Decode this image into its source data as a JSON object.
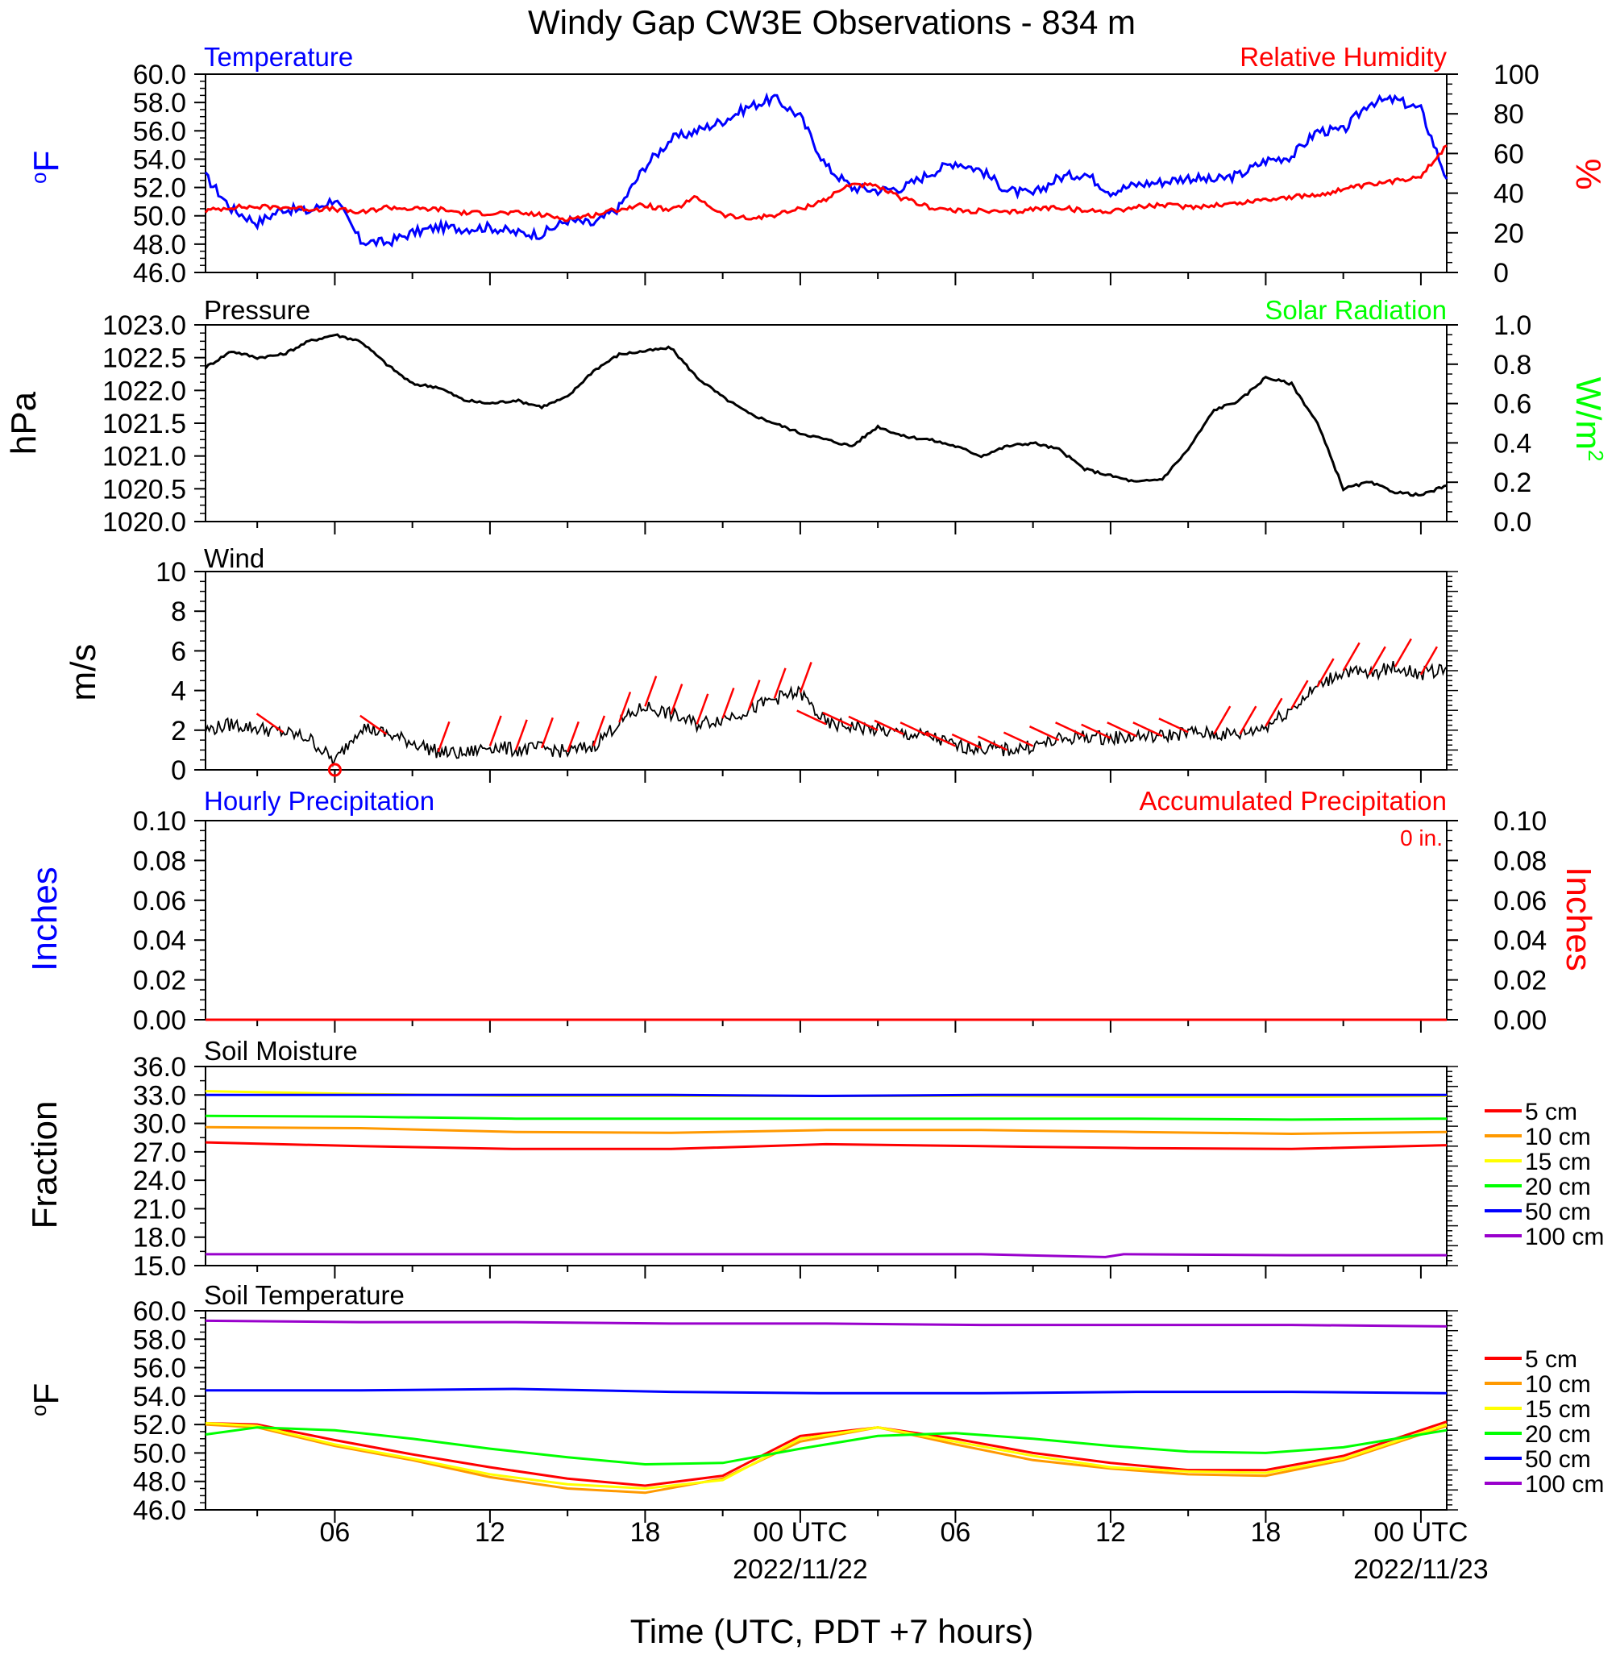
{
  "title": "Windy Gap CW3E Observations - 834 m",
  "x_axis": {
    "label": "Time (UTC, PDT +7 hours)",
    "ticks": [
      {
        "hour": 6,
        "label": "06",
        "date": ""
      },
      {
        "hour": 12,
        "label": "12",
        "date": ""
      },
      {
        "hour": 18,
        "label": "18",
        "date": ""
      },
      {
        "hour": 24,
        "label": "00 UTC",
        "date": "2022/11/22"
      },
      {
        "hour": 30,
        "label": "06",
        "date": ""
      },
      {
        "hour": 36,
        "label": "12",
        "date": ""
      },
      {
        "hour": 42,
        "label": "18",
        "date": ""
      },
      {
        "hour": 48,
        "label": "00 UTC",
        "date": "2022/11/23"
      }
    ],
    "range_hours": [
      1,
      49
    ]
  },
  "panels": {
    "temperature": {
      "left_title": "Temperature",
      "right_title": "Relative Humidity",
      "left_unit": "oF",
      "right_unit": "%",
      "left_ticks": [
        "46.0",
        "48.0",
        "50.0",
        "52.0",
        "54.0",
        "56.0",
        "58.0",
        "60.0"
      ],
      "right_ticks": [
        "0",
        "20",
        "40",
        "60",
        "80",
        "100"
      ],
      "left_color": "#0000ff",
      "right_color": "#ff0000"
    },
    "pressure": {
      "left_title": "Pressure",
      "right_title": "Solar Radiation",
      "left_unit": "hPa",
      "right_unit": "W/m2",
      "left_ticks": [
        "1020.0",
        "1020.5",
        "1021.0",
        "1021.5",
        "1022.0",
        "1022.5",
        "1023.0"
      ],
      "right_ticks": [
        "0.0",
        "0.2",
        "0.4",
        "0.6",
        "0.8",
        "1.0"
      ],
      "right_color": "#00ff00"
    },
    "wind": {
      "left_title": "Wind",
      "left_unit": "m/s",
      "left_ticks": [
        "0",
        "2",
        "4",
        "6",
        "8",
        "10"
      ],
      "barb_color": "#ff0000"
    },
    "precip": {
      "left_title": "Hourly Precipitation",
      "right_title": "Accumulated Precipitation",
      "left_unit": "Inches",
      "right_unit": "Inches",
      "total_label": "0 in.",
      "left_ticks": [
        "0.00",
        "0.02",
        "0.04",
        "0.06",
        "0.08",
        "0.10"
      ],
      "right_ticks": [
        "0.00",
        "0.02",
        "0.04",
        "0.06",
        "0.08",
        "0.10"
      ],
      "left_color": "#0000ff",
      "right_color": "#ff0000"
    },
    "soil_moisture": {
      "left_title": "Soil Moisture",
      "left_unit": "Fraction",
      "left_ticks": [
        "15.0",
        "18.0",
        "21.0",
        "24.0",
        "27.0",
        "30.0",
        "33.0",
        "36.0"
      ]
    },
    "soil_temperature": {
      "left_title": "Soil Temperature",
      "left_unit": "oF",
      "left_ticks": [
        "46.0",
        "48.0",
        "50.0",
        "52.0",
        "54.0",
        "56.0",
        "58.0",
        "60.0"
      ]
    }
  },
  "legend": [
    {
      "label": "5 cm",
      "color": "#ff0000"
    },
    {
      "label": "10 cm",
      "color": "#ff9900"
    },
    {
      "label": "15 cm",
      "color": "#ffff00"
    },
    {
      "label": "20 cm",
      "color": "#00ff00"
    },
    {
      "label": "50 cm",
      "color": "#0000ff"
    },
    {
      "label": "100 cm",
      "color": "#9900cc"
    }
  ],
  "chart_data": [
    {
      "type": "line",
      "title": "Temperature / Relative Humidity",
      "x_unit": "hours since 2022/11/21 00 UTC",
      "ylim": [
        46,
        60
      ],
      "y2lim": [
        0,
        100
      ],
      "series": [
        {
          "name": "Temperature",
          "axis": "left",
          "color": "#0000ff",
          "x": [
            1,
            2,
            3,
            4,
            5,
            6,
            7,
            8,
            9,
            10,
            11,
            12,
            13,
            14,
            15,
            16,
            17,
            18,
            19,
            20,
            21,
            22,
            23,
            24,
            25,
            26,
            27,
            28,
            29,
            30,
            31,
            32,
            33,
            34,
            35,
            36,
            37,
            38,
            39,
            40,
            41,
            42,
            43,
            44,
            45,
            46,
            47,
            48,
            49
          ],
          "y": [
            52.8,
            50.5,
            49.5,
            50.5,
            50.3,
            51.2,
            48.2,
            48.1,
            48.8,
            49.2,
            49.1,
            49.2,
            48.8,
            48.7,
            49.7,
            49.4,
            50.6,
            53.5,
            55.4,
            56.0,
            56.7,
            57.7,
            58.3,
            57.0,
            53.5,
            52.0,
            51.8,
            52.0,
            53.0,
            53.8,
            53.2,
            51.8,
            51.5,
            52.7,
            53.0,
            51.7,
            52.2,
            52.4,
            52.7,
            52.5,
            52.9,
            53.9,
            54.2,
            56.0,
            56.0,
            58.0,
            58.2,
            57.5,
            52.6
          ]
        },
        {
          "name": "Relative Humidity",
          "axis": "right",
          "color": "#ff0000",
          "x": [
            1,
            2,
            3,
            4,
            5,
            6,
            7,
            8,
            9,
            10,
            11,
            12,
            13,
            14,
            15,
            16,
            17,
            18,
            19,
            20,
            21,
            22,
            23,
            24,
            25,
            26,
            27,
            28,
            29,
            30,
            31,
            32,
            33,
            34,
            35,
            36,
            37,
            38,
            39,
            40,
            41,
            42,
            43,
            44,
            45,
            46,
            47,
            48,
            49
          ],
          "y": [
            31,
            33,
            33,
            33,
            32,
            32,
            30,
            33,
            32,
            32,
            30,
            30,
            30,
            29,
            27,
            29,
            32,
            34,
            31,
            38,
            29,
            27,
            29,
            32,
            37,
            45,
            43,
            37,
            33,
            31,
            31,
            30,
            32,
            33,
            31,
            31,
            33,
            34,
            33,
            34,
            35,
            37,
            38,
            39,
            42,
            44,
            46,
            49,
            64
          ]
        }
      ]
    },
    {
      "type": "line",
      "title": "Pressure / Solar Radiation",
      "ylim": [
        1020.0,
        1023.0
      ],
      "y2lim": [
        0.0,
        1.0
      ],
      "series": [
        {
          "name": "Pressure",
          "axis": "left",
          "color": "#000000",
          "x": [
            1,
            2,
            3,
            4,
            5,
            6,
            7,
            8,
            9,
            10,
            11,
            12,
            13,
            14,
            15,
            16,
            17,
            18,
            19,
            20,
            21,
            22,
            23,
            24,
            25,
            26,
            27,
            28,
            29,
            30,
            31,
            32,
            33,
            34,
            35,
            36,
            37,
            38,
            39,
            40,
            41,
            42,
            43,
            44,
            45,
            46,
            47,
            48,
            49
          ],
          "y": [
            1022.35,
            1022.6,
            1022.5,
            1022.55,
            1022.75,
            1022.85,
            1022.75,
            1022.4,
            1022.1,
            1022.05,
            1021.85,
            1021.8,
            1021.85,
            1021.75,
            1021.9,
            1022.3,
            1022.55,
            1022.6,
            1022.65,
            1022.2,
            1021.9,
            1021.65,
            1021.5,
            1021.35,
            1021.25,
            1021.15,
            1021.45,
            1021.3,
            1021.25,
            1021.15,
            1021.0,
            1021.15,
            1021.2,
            1021.1,
            1020.8,
            1020.7,
            1020.6,
            1020.65,
            1021.1,
            1021.7,
            1021.85,
            1022.2,
            1022.1,
            1021.5,
            1020.5,
            1020.6,
            1020.45,
            1020.4,
            1020.55
          ]
        }
      ]
    },
    {
      "type": "line",
      "title": "Wind",
      "ylim": [
        0,
        10
      ],
      "series": [
        {
          "name": "Wind",
          "color": "#000000",
          "x": [
            1,
            2,
            3,
            4,
            5,
            6,
            7,
            8,
            9,
            10,
            11,
            12,
            13,
            14,
            15,
            16,
            17,
            18,
            19,
            20,
            21,
            22,
            23,
            24,
            25,
            26,
            27,
            28,
            29,
            30,
            31,
            32,
            33,
            34,
            35,
            36,
            37,
            38,
            39,
            40,
            41,
            42,
            43,
            44,
            45,
            46,
            47,
            48,
            49
          ],
          "y": [
            2.0,
            2.3,
            2.1,
            1.9,
            1.6,
            0.4,
            2.2,
            1.8,
            1.4,
            0.9,
            0.8,
            1.2,
            1.0,
            1.1,
            0.9,
            1.2,
            2.4,
            3.2,
            2.8,
            2.3,
            2.6,
            3.0,
            3.6,
            3.9,
            2.3,
            2.2,
            2.0,
            1.8,
            1.7,
            1.2,
            1.1,
            1.0,
            1.2,
            1.5,
            1.7,
            1.6,
            1.7,
            1.7,
            1.9,
            1.8,
            1.8,
            2.2,
            3.1,
            4.2,
            5.0,
            4.8,
            5.2,
            4.8,
            5.2
          ]
        }
      ]
    },
    {
      "type": "line",
      "title": "Hourly Precipitation / Accumulated Precipitation",
      "ylim": [
        0.0,
        0.1
      ],
      "y2lim": [
        0.0,
        0.1
      ],
      "series": [
        {
          "name": "Hourly Precipitation",
          "color": "#0000ff",
          "x": [
            1,
            49
          ],
          "y": [
            0,
            0
          ]
        },
        {
          "name": "Accumulated Precipitation",
          "color": "#ff0000",
          "x": [
            1,
            49
          ],
          "y": [
            0,
            0
          ]
        }
      ]
    },
    {
      "type": "line",
      "title": "Soil Moisture",
      "ylim": [
        15,
        36
      ],
      "series": [
        {
          "name": "5 cm",
          "color": "#ff0000",
          "x": [
            1,
            7,
            13,
            19,
            25,
            31,
            37,
            43,
            49
          ],
          "y": [
            28.0,
            27.6,
            27.3,
            27.3,
            27.8,
            27.6,
            27.4,
            27.3,
            27.7
          ]
        },
        {
          "name": "10 cm",
          "color": "#ff9900",
          "x": [
            1,
            7,
            13,
            19,
            25,
            31,
            37,
            43,
            49
          ],
          "y": [
            29.6,
            29.5,
            29.1,
            29.0,
            29.3,
            29.3,
            29.1,
            28.9,
            29.1
          ]
        },
        {
          "name": "15 cm",
          "color": "#ffff00",
          "x": [
            1,
            7,
            13,
            19,
            25,
            31,
            37,
            43,
            49
          ],
          "y": [
            33.4,
            33.1,
            32.9,
            32.9,
            32.9,
            32.9,
            32.8,
            32.8,
            32.9
          ]
        },
        {
          "name": "20 cm",
          "color": "#00ff00",
          "x": [
            1,
            7,
            13,
            19,
            25,
            31,
            37,
            43,
            49
          ],
          "y": [
            30.8,
            30.7,
            30.5,
            30.5,
            30.5,
            30.5,
            30.5,
            30.4,
            30.5
          ]
        },
        {
          "name": "50 cm",
          "color": "#0000ff",
          "x": [
            1,
            7,
            13,
            19,
            25,
            31,
            37,
            43,
            49
          ],
          "y": [
            33.0,
            33.0,
            33.0,
            33.0,
            32.9,
            33.0,
            33.0,
            33.0,
            33.0
          ]
        },
        {
          "name": "100 cm",
          "color": "#9900cc",
          "x": [
            1,
            7,
            13,
            19,
            25,
            31,
            35.8,
            36.5,
            43,
            49
          ],
          "y": [
            16.2,
            16.2,
            16.2,
            16.2,
            16.2,
            16.2,
            15.9,
            16.2,
            16.1,
            16.1
          ]
        }
      ]
    },
    {
      "type": "line",
      "title": "Soil Temperature",
      "ylim": [
        46,
        60
      ],
      "series": [
        {
          "name": "5 cm",
          "color": "#ff0000",
          "x": [
            1,
            3,
            6,
            9,
            12,
            15,
            18,
            21,
            24,
            27,
            30,
            33,
            36,
            39,
            42,
            45,
            49
          ],
          "y": [
            52.1,
            52.0,
            50.9,
            49.9,
            49.0,
            48.2,
            47.7,
            48.4,
            51.2,
            51.8,
            51.0,
            50.0,
            49.3,
            48.8,
            48.8,
            49.8,
            52.2
          ]
        },
        {
          "name": "10 cm",
          "color": "#ff9900",
          "x": [
            1,
            3,
            6,
            9,
            12,
            15,
            18,
            21,
            24,
            27,
            30,
            33,
            36,
            39,
            42,
            45,
            49
          ],
          "y": [
            52.0,
            51.8,
            50.5,
            49.5,
            48.3,
            47.5,
            47.2,
            48.2,
            50.8,
            51.8,
            50.6,
            49.5,
            48.9,
            48.5,
            48.4,
            49.5,
            51.9
          ]
        },
        {
          "name": "15 cm",
          "color": "#ffff00",
          "x": [
            1,
            3,
            6,
            9,
            12,
            15,
            18,
            21,
            24,
            27,
            30,
            33,
            36,
            39,
            42,
            45,
            49
          ],
          "y": [
            52.1,
            51.9,
            50.6,
            49.6,
            48.5,
            47.8,
            47.5,
            48.1,
            51.0,
            51.8,
            50.8,
            49.8,
            49.0,
            48.7,
            48.6,
            49.6,
            52.0
          ]
        },
        {
          "name": "20 cm",
          "color": "#00ff00",
          "x": [
            1,
            3,
            6,
            9,
            12,
            15,
            18,
            21,
            24,
            27,
            30,
            33,
            36,
            39,
            42,
            45,
            49
          ],
          "y": [
            51.3,
            51.8,
            51.6,
            51.0,
            50.3,
            49.7,
            49.2,
            49.3,
            50.3,
            51.2,
            51.4,
            51.0,
            50.5,
            50.1,
            50.0,
            50.4,
            51.6
          ]
        },
        {
          "name": "50 cm",
          "color": "#0000ff",
          "x": [
            1,
            7,
            13,
            19,
            25,
            31,
            37,
            43,
            49
          ],
          "y": [
            54.4,
            54.4,
            54.5,
            54.3,
            54.2,
            54.2,
            54.3,
            54.3,
            54.2
          ]
        },
        {
          "name": "100 cm",
          "color": "#9900cc",
          "x": [
            1,
            7,
            13,
            19,
            25,
            31,
            37,
            43,
            49
          ],
          "y": [
            59.3,
            59.2,
            59.2,
            59.1,
            59.1,
            59.0,
            59.0,
            59.0,
            58.9
          ]
        }
      ]
    }
  ]
}
